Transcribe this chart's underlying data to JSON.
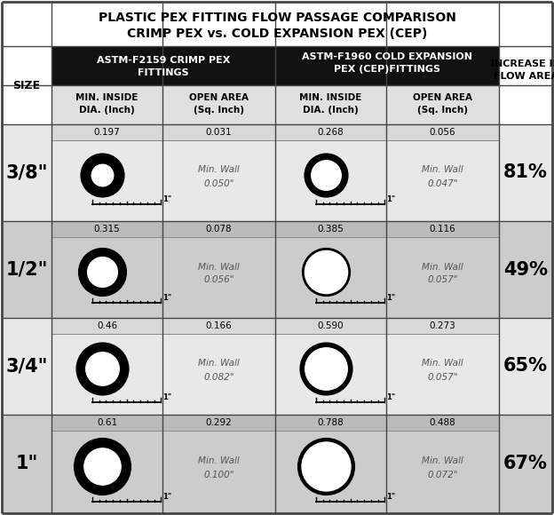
{
  "title_line1": "PLASTIC PEX FITTING FLOW PASSAGE COMPARISON",
  "title_line2": "CRIMP PEX vs. COLD EXPANSION PEX (CEP)",
  "rows": [
    {
      "size": "3/8\"",
      "crimp_dia": "0.197",
      "crimp_area": "0.031",
      "crimp_wall": "0.050\"",
      "cep_dia": "0.268",
      "cep_area": "0.056",
      "cep_wall": "0.047\"",
      "increase": "81%",
      "crimp_outer_r": 0.195,
      "crimp_inner_r": 0.098,
      "cep_outer_r": 0.195,
      "cep_inner_r": 0.134,
      "bg_data": "#d8d8d8",
      "bg_main": "#e8e8e8"
    },
    {
      "size": "1/2\"",
      "crimp_dia": "0.315",
      "crimp_area": "0.078",
      "crimp_wall": "0.056\"",
      "cep_dia": "0.385",
      "cep_area": "0.116",
      "cep_wall": "0.057\"",
      "increase": "49%",
      "crimp_outer_r": 0.215,
      "crimp_inner_r": 0.135,
      "cep_outer_r": 0.215,
      "cep_inner_r": 0.1925,
      "bg_data": "#bbbbbb",
      "bg_main": "#cccccc"
    },
    {
      "size": "3/4\"",
      "crimp_dia": "0.46",
      "crimp_area": "0.166",
      "crimp_wall": "0.082\"",
      "cep_dia": "0.590",
      "cep_area": "0.273",
      "cep_wall": "0.057\"",
      "increase": "65%",
      "crimp_outer_r": 0.235,
      "crimp_inner_r": 0.15,
      "cep_outer_r": 0.235,
      "cep_inner_r": 0.19,
      "bg_data": "#d8d8d8",
      "bg_main": "#e8e8e8"
    },
    {
      "size": "1\"",
      "crimp_dia": "0.61",
      "crimp_area": "0.292",
      "crimp_wall": "0.100\"",
      "cep_dia": "0.788",
      "cep_area": "0.488",
      "cep_wall": "0.072\"",
      "increase": "67%",
      "crimp_outer_r": 0.255,
      "crimp_inner_r": 0.165,
      "cep_outer_r": 0.255,
      "cep_inner_r": 0.22,
      "bg_data": "#bbbbbb",
      "bg_main": "#cccccc"
    }
  ],
  "black": "#000000",
  "white": "#ffffff",
  "header_black": "#111111",
  "gray_data": "#d0d0d0",
  "border": "#444444"
}
